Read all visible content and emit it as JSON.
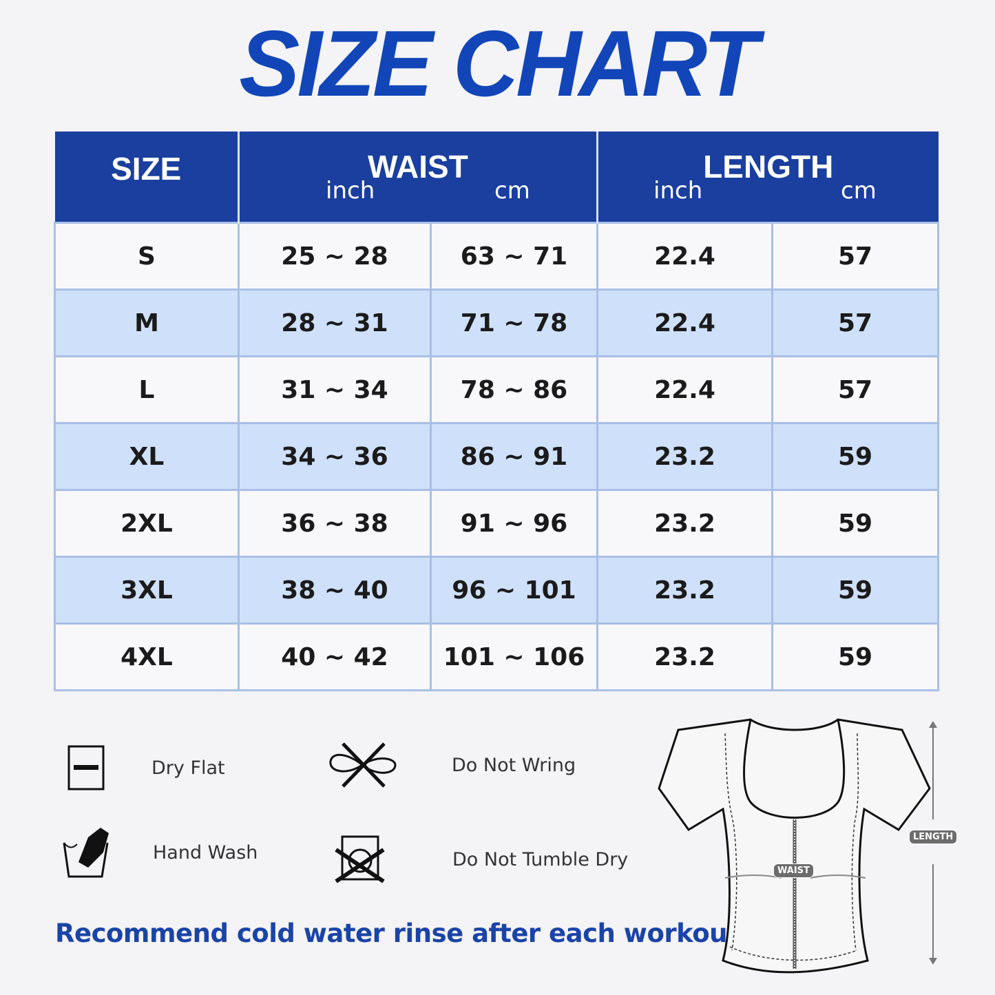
{
  "title": "SIZE CHART",
  "table": {
    "headers": {
      "size": "SIZE",
      "waist": "WAIST",
      "length": "LENGTH",
      "inch": "inch",
      "cm": "cm"
    },
    "rows": [
      {
        "size": "S",
        "waist_inch": "25 ~ 28",
        "waist_cm": "63 ~ 71",
        "length_inch": "22.4",
        "length_cm": "57"
      },
      {
        "size": "M",
        "waist_inch": "28 ~ 31",
        "waist_cm": "71 ~ 78",
        "length_inch": "22.4",
        "length_cm": "57"
      },
      {
        "size": "L",
        "waist_inch": "31 ~ 34",
        "waist_cm": "78 ~ 86",
        "length_inch": "22.4",
        "length_cm": "57"
      },
      {
        "size": "XL",
        "waist_inch": "34 ~ 36",
        "waist_cm": "86 ~ 91",
        "length_inch": "23.2",
        "length_cm": "59"
      },
      {
        "size": "2XL",
        "waist_inch": "36 ~ 38",
        "waist_cm": "91 ~ 96",
        "length_inch": "23.2",
        "length_cm": "59"
      },
      {
        "size": "3XL",
        "waist_inch": "38 ~ 40",
        "waist_cm": "96 ~ 101",
        "length_inch": "23.2",
        "length_cm": "59"
      },
      {
        "size": "4XL",
        "waist_inch": "40 ~ 42",
        "waist_cm": "101 ~ 106",
        "length_inch": "23.2",
        "length_cm": "59"
      }
    ]
  },
  "care": [
    {
      "icon": "dry-flat-icon",
      "label": "Dry Flat"
    },
    {
      "icon": "do-not-wring-icon",
      "label": "Do Not Wring"
    },
    {
      "icon": "hand-wash-icon",
      "label": "Hand Wash"
    },
    {
      "icon": "do-not-tumble-dry-icon",
      "label": "Do Not Tumble Dry"
    }
  ],
  "note": "Recommend cold water rinse after each workout.",
  "diagram": {
    "waist_label": "WAIST",
    "length_label": "LENGTH"
  },
  "colors": {
    "title": "#1246b8",
    "header": "#1a3f9e",
    "alt_row": "#cfe0fa",
    "note": "#1a44a6"
  }
}
